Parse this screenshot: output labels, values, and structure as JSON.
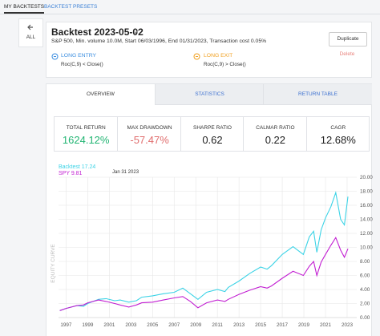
{
  "tabs": [
    "MY BACKTESTS",
    "BACKTEST PRESETS"
  ],
  "sidebar": {
    "back_label": "ALL"
  },
  "backtest": {
    "title": "Backtest 2023-05-02",
    "description": "S&P 500, Min. volume 10.0M, Start 06/03/1996, End 01/31/2023, Transaction cost 0.05%",
    "entry": {
      "label": "LONG ENTRY",
      "rule": "Roc(C,9) < Close()"
    },
    "exit": {
      "label": "LONG EXIT",
      "rule": "Roc(C,9) > Close()"
    },
    "actions": [
      "Duplicate",
      "Delete"
    ]
  },
  "view_tabs": [
    "OVERVIEW",
    "STATISTICS",
    "RETURN TABLE"
  ],
  "metrics": [
    {
      "label": "TOTAL RETURN",
      "value": "1624.12%"
    },
    {
      "label": "MAX DRAWDOWN",
      "value": "-57.47%"
    },
    {
      "label": "SHARPE RATIO",
      "value": "0.62"
    },
    {
      "label": "CALMAR RATIO",
      "value": "0.22"
    },
    {
      "label": "CAGR",
      "value": "12.68%"
    }
  ],
  "chart": {
    "type": "line",
    "y_label": "EQUITY CURVE",
    "hover_label": "Jan 31 2023",
    "x": [
      1996.42,
      1997,
      1998,
      1998.6,
      1999,
      2000,
      2000.7,
      2001.5,
      2002,
      2002.8,
      2003.5,
      2004,
      2005,
      2006,
      2007,
      2007.8,
      2008.5,
      2009.2,
      2010,
      2011,
      2011.7,
      2012,
      2013,
      2014,
      2015,
      2015.6,
      2016,
      2017,
      2018,
      2018.95,
      2019.5,
      2019.9,
      2020.2,
      2020.6,
      2021,
      2021.5,
      2021.95,
      2022.4,
      2022.75,
      2023.08
    ],
    "series": [
      {
        "name": "Backtest 17.24",
        "color": "#3cd3e6",
        "values": [
          1,
          1.3,
          1.7,
          1.6,
          2,
          2.6,
          2.7,
          2.4,
          2.5,
          2.2,
          2.4,
          2.9,
          3.1,
          3.4,
          3.6,
          4.2,
          3.4,
          2.6,
          3.6,
          4.0,
          3.7,
          4.3,
          5.2,
          6.3,
          7.2,
          6.9,
          7.4,
          9.0,
          10.1,
          9.0,
          11.5,
          12.3,
          9.3,
          12.5,
          14.2,
          15.8,
          17.8,
          14,
          13.2,
          17.24
        ]
      },
      {
        "name": "SPY 9.81",
        "color": "#c21fd2",
        "values": [
          1,
          1.3,
          1.7,
          1.8,
          2.1,
          2.5,
          2.3,
          2.0,
          1.8,
          1.5,
          1.8,
          2.1,
          2.2,
          2.5,
          2.8,
          3.0,
          2.3,
          1.4,
          2.1,
          2.5,
          2.3,
          2.6,
          3.3,
          3.9,
          4.4,
          4.2,
          4.5,
          5.6,
          6.6,
          6.0,
          7.3,
          8.0,
          6.0,
          7.9,
          9.0,
          10.3,
          11.4,
          9.6,
          8.6,
          9.81
        ]
      }
    ],
    "xlim": [
      1996.3,
      2023.3
    ],
    "xticks": [
      1997,
      1999,
      2001,
      2003,
      2005,
      2007,
      2009,
      2011,
      2013,
      2015,
      2017,
      2019,
      2021,
      2023
    ],
    "ylim": [
      0,
      20
    ],
    "yticks": [
      {
        "value": 0,
        "label": "0.00"
      },
      {
        "value": 2,
        "label": "2.00"
      },
      {
        "value": 4,
        "label": "4.00"
      },
      {
        "value": 6,
        "label": "6.00"
      },
      {
        "value": 8,
        "label": "8.00"
      },
      {
        "value": 10,
        "label": "10.00"
      },
      {
        "value": 12,
        "label": "12.00"
      },
      {
        "value": 14,
        "label": "14.00"
      },
      {
        "value": 16,
        "label": "16.00"
      },
      {
        "value": 18,
        "label": "18.00"
      },
      {
        "value": 20,
        "label": "20.00"
      }
    ],
    "grid": true
  }
}
